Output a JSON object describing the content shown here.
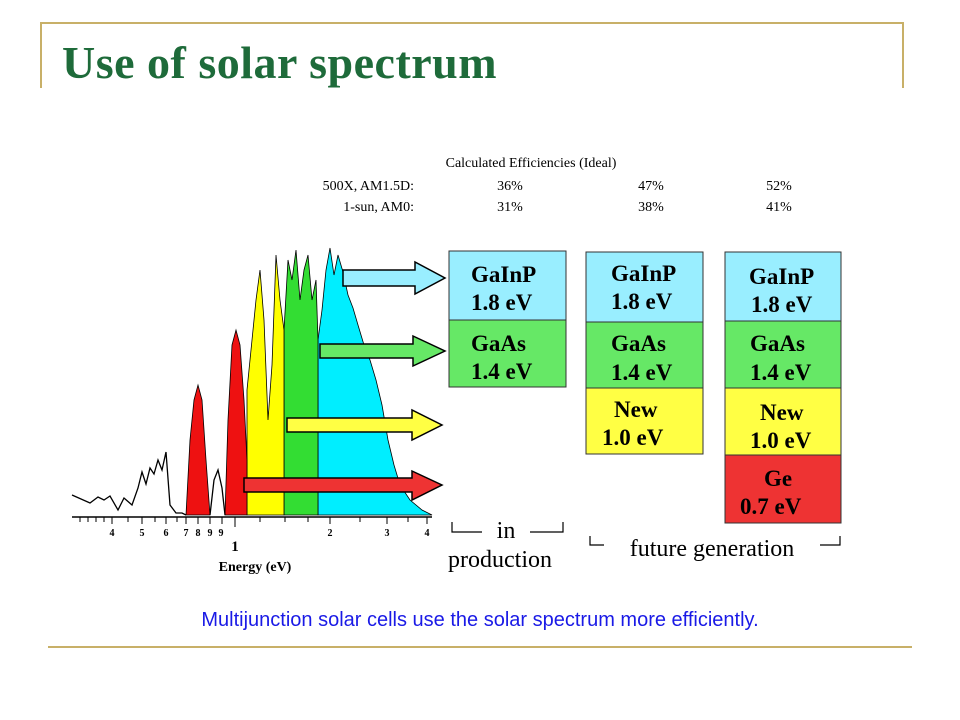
{
  "slide": {
    "title": "Use of solar spectrum",
    "caption": "Multijunction solar cells use the solar spectrum more efficiently."
  },
  "efficiencies": {
    "header": "Calculated Efficiencies (Ideal)",
    "rows": [
      {
        "label": "500X, AM1.5D:",
        "values": [
          "36%",
          "47%",
          "52%"
        ]
      },
      {
        "label": "1-sun, AM0:",
        "values": [
          "31%",
          "38%",
          "41%"
        ]
      }
    ]
  },
  "spectrum": {
    "axis_label": "Energy (eV)",
    "major_tick": "1",
    "tick_labels": [
      "4",
      "5",
      "6",
      "7",
      "8",
      "9",
      "2",
      "3",
      "4"
    ]
  },
  "stacks": [
    {
      "name": "in-production",
      "layers": [
        {
          "material": "GaInP",
          "energy": "1.8 eV",
          "color": "#99EEFF"
        },
        {
          "material": "GaAs",
          "energy": "1.4 eV",
          "color": "#66E866"
        }
      ]
    },
    {
      "name": "future-3-junction",
      "layers": [
        {
          "material": "GaInP",
          "energy": "1.8 eV",
          "color": "#99EEFF"
        },
        {
          "material": "GaAs",
          "energy": "1.4 eV",
          "color": "#66E866"
        },
        {
          "material": "New",
          "energy": "1.0 eV",
          "color": "#FFFF44"
        }
      ]
    },
    {
      "name": "future-4-junction",
      "layers": [
        {
          "material": "GaInP",
          "energy": "1.8 eV",
          "color": "#99EEFF"
        },
        {
          "material": "GaAs",
          "energy": "1.4 eV",
          "color": "#66E866"
        },
        {
          "material": "New",
          "energy": "1.0 eV",
          "color": "#FFFF44"
        },
        {
          "material": "Ge",
          "energy": "0.7 eV",
          "color": "#EE3333"
        }
      ]
    }
  ],
  "brackets": {
    "in_production": "in",
    "in_production_2": "production",
    "future": "future generation"
  },
  "colors": {
    "title": "#1E6B3A",
    "caption": "#1A1AE6",
    "frame": "#C8B068",
    "cyan": "#00EEFF",
    "green": "#33DD33",
    "yellow": "#FFFF00",
    "red": "#EE1111"
  }
}
